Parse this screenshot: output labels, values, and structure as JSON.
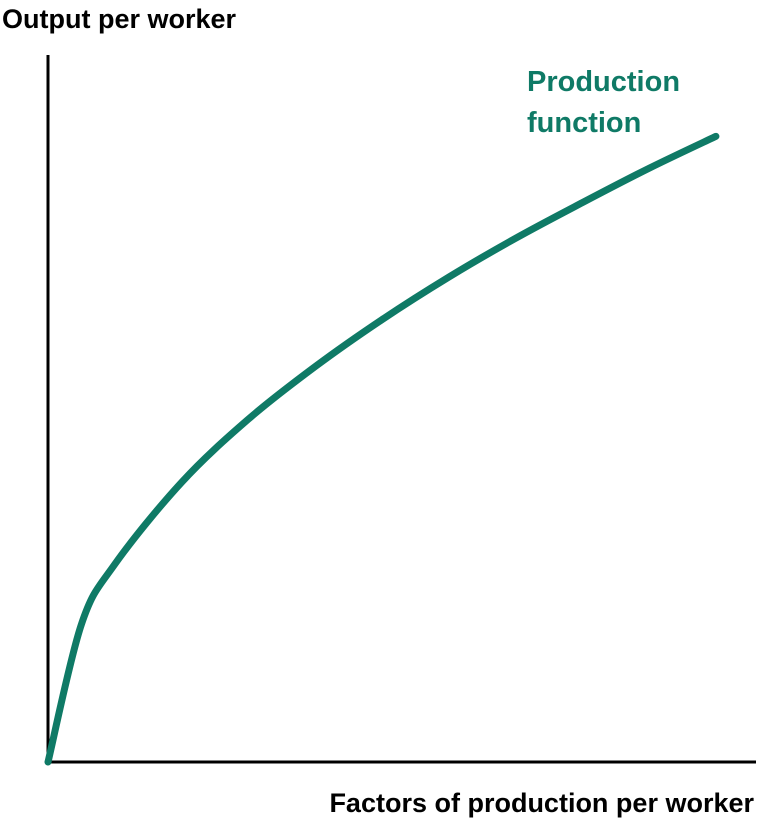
{
  "chart_data": {
    "type": "line",
    "title": "",
    "xlabel": "Factors of production per worker",
    "ylabel": "Output per worker",
    "x": [
      0,
      0.05,
      0.1,
      0.2,
      0.3,
      0.4,
      0.5,
      0.6,
      0.7,
      0.8,
      0.9,
      1.0
    ],
    "series": [
      {
        "name": "Production function",
        "name_lines": [
          "Production",
          "function"
        ],
        "values": [
          0,
          0.22,
          0.316,
          0.447,
          0.548,
          0.632,
          0.707,
          0.775,
          0.837,
          0.894,
          0.949,
          1.0
        ]
      }
    ],
    "xlim": [
      0,
      1.06
    ],
    "ylim": [
      0,
      1.13
    ],
    "grid": false,
    "legend": "none",
    "colors": {
      "curve": "#0F7A66",
      "axis": "#000000",
      "text": "#000000"
    }
  }
}
